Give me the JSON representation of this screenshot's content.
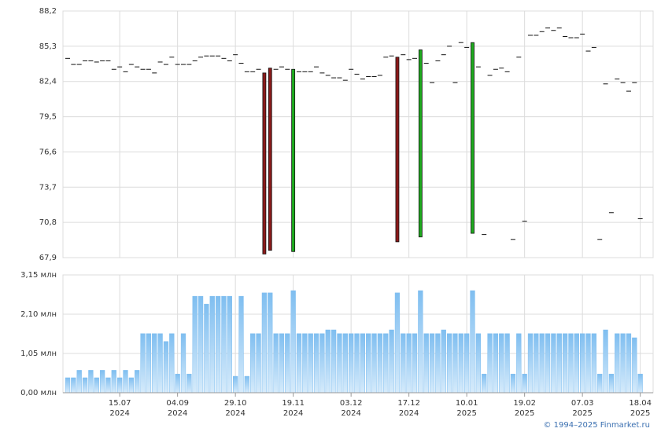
{
  "chart_data": [
    {
      "type": "candlestick",
      "open": [
        84.3,
        83.8,
        83.8,
        84.1,
        84.1,
        84.0,
        84.1,
        84.1,
        83.4,
        83.6,
        83.2,
        83.8,
        83.6,
        83.4,
        83.4,
        83.1,
        84.0,
        83.8,
        84.4,
        83.8,
        83.8,
        83.8,
        84.1,
        84.4,
        84.5,
        84.5,
        84.5,
        84.3,
        84.1,
        84.6,
        83.9,
        83.2,
        83.2,
        83.4,
        83.1,
        83.5,
        83.4,
        83.6,
        83.4,
        68.4,
        83.2,
        83.2,
        83.2,
        83.6,
        83.1,
        82.9,
        82.7,
        82.7,
        82.5,
        83.4,
        83.0,
        82.6,
        82.8,
        82.8,
        82.9,
        84.4,
        84.5,
        84.4,
        84.6,
        84.2,
        84.3,
        69.6,
        83.9,
        82.3,
        84.1,
        84.6,
        85.3,
        82.3,
        85.6,
        85.2,
        69.9,
        83.6,
        69.8,
        82.9,
        83.4,
        83.5,
        83.2,
        69.4,
        84.4,
        70.9,
        86.2,
        86.2,
        86.5,
        86.8,
        86.6,
        86.8,
        86.1,
        86.0,
        86.0,
        86.3,
        84.9,
        85.2,
        69.4,
        82.2,
        71.6,
        82.6,
        82.3,
        81.6,
        82.3,
        71.1
      ],
      "close": [
        84.3,
        83.8,
        83.8,
        84.1,
        84.1,
        84.0,
        84.1,
        84.1,
        83.4,
        83.6,
        83.2,
        83.8,
        83.6,
        83.4,
        83.4,
        83.1,
        84.0,
        83.8,
        84.4,
        83.8,
        83.8,
        83.8,
        84.1,
        84.4,
        84.5,
        84.5,
        84.5,
        84.3,
        84.1,
        84.6,
        83.9,
        83.2,
        83.2,
        83.4,
        68.2,
        68.5,
        83.4,
        83.6,
        83.4,
        83.4,
        83.2,
        83.2,
        83.2,
        83.6,
        83.1,
        82.9,
        82.7,
        82.7,
        82.5,
        83.4,
        83.0,
        82.6,
        82.8,
        82.8,
        82.9,
        84.4,
        84.5,
        69.2,
        84.6,
        84.2,
        84.3,
        85.0,
        83.9,
        82.3,
        84.1,
        84.6,
        85.3,
        82.3,
        85.6,
        85.2,
        85.6,
        83.6,
        69.8,
        82.9,
        83.4,
        83.5,
        83.2,
        69.4,
        84.4,
        70.9,
        86.2,
        86.2,
        86.5,
        86.8,
        86.6,
        86.8,
        86.1,
        86.0,
        86.0,
        86.3,
        84.9,
        85.2,
        69.4,
        82.2,
        71.6,
        82.6,
        82.3,
        81.6,
        82.3,
        71.1
      ],
      "ylim": [
        67.9,
        88.2
      ],
      "yticks": [
        {
          "value": 67.9,
          "label": "67,9"
        },
        {
          "value": 70.8,
          "label": "70,8"
        },
        {
          "value": 73.7,
          "label": "73,7"
        },
        {
          "value": 76.6,
          "label": "76,6"
        },
        {
          "value": 79.5,
          "label": "79,5"
        },
        {
          "value": 82.4,
          "label": "82,4"
        },
        {
          "value": 85.3,
          "label": "85,3"
        },
        {
          "value": 88.2,
          "label": "88,2"
        }
      ],
      "up_color": "#1faa1f",
      "down_color": "#8b1a1a",
      "grid": true
    },
    {
      "type": "bar",
      "categories": [
        null,
        null,
        null,
        null,
        null,
        null,
        null,
        null,
        null,
        "15.07\n2024",
        null,
        null,
        null,
        null,
        null,
        null,
        null,
        null,
        null,
        "04.09\n2024",
        null,
        null,
        null,
        null,
        null,
        null,
        null,
        null,
        null,
        "29.10\n2024",
        null,
        null,
        null,
        null,
        null,
        null,
        null,
        null,
        null,
        "19.11\n2024",
        null,
        null,
        null,
        null,
        null,
        null,
        null,
        null,
        null,
        "03.12\n2024",
        null,
        null,
        null,
        null,
        null,
        null,
        null,
        null,
        null,
        "17.12\n2024",
        null,
        null,
        null,
        null,
        null,
        null,
        null,
        null,
        null,
        "10.01\n2025",
        null,
        null,
        null,
        null,
        null,
        null,
        null,
        null,
        null,
        "19.02\n2025",
        null,
        null,
        null,
        null,
        null,
        null,
        null,
        null,
        null,
        "07.03\n2025",
        null,
        null,
        null,
        null,
        null,
        null,
        null,
        null,
        null,
        "18.04\n2025"
      ],
      "values": [
        0.4,
        0.4,
        0.6,
        0.4,
        0.6,
        0.4,
        0.6,
        0.4,
        0.6,
        0.4,
        0.6,
        0.4,
        0.6,
        1.58,
        1.58,
        1.58,
        1.58,
        1.37,
        1.58,
        0.5,
        1.58,
        0.5,
        2.58,
        2.58,
        2.37,
        2.58,
        2.58,
        2.58,
        2.58,
        0.44,
        2.58,
        0.44,
        1.58,
        1.58,
        2.67,
        2.67,
        1.58,
        1.58,
        1.58,
        2.73,
        1.58,
        1.58,
        1.58,
        1.58,
        1.58,
        1.68,
        1.68,
        1.58,
        1.58,
        1.58,
        1.58,
        1.58,
        1.58,
        1.58,
        1.58,
        1.58,
        1.68,
        2.67,
        1.58,
        1.58,
        1.58,
        2.73,
        1.58,
        1.58,
        1.58,
        1.68,
        1.58,
        1.58,
        1.58,
        1.58,
        2.73,
        1.58,
        0.5,
        1.58,
        1.58,
        1.58,
        1.58,
        0.5,
        1.58,
        0.5,
        1.58,
        1.58,
        1.58,
        1.58,
        1.58,
        1.58,
        1.58,
        1.58,
        1.58,
        1.58,
        1.58,
        1.58,
        0.5,
        1.68,
        0.5,
        1.58,
        1.58,
        1.58,
        1.47,
        0.5
      ],
      "ylim": [
        0,
        3.15
      ],
      "yticks": [
        {
          "value": 0,
          "label": "0,00 млн"
        },
        {
          "value": 1.05,
          "label": "1,05 млн"
        },
        {
          "value": 2.1,
          "label": "2,10 млн"
        },
        {
          "value": 3.15,
          "label": "3,15 млн"
        }
      ],
      "color": "#7fbef0",
      "grid": true
    }
  ],
  "footer": "© 1994–2025 Finmarket.ru"
}
